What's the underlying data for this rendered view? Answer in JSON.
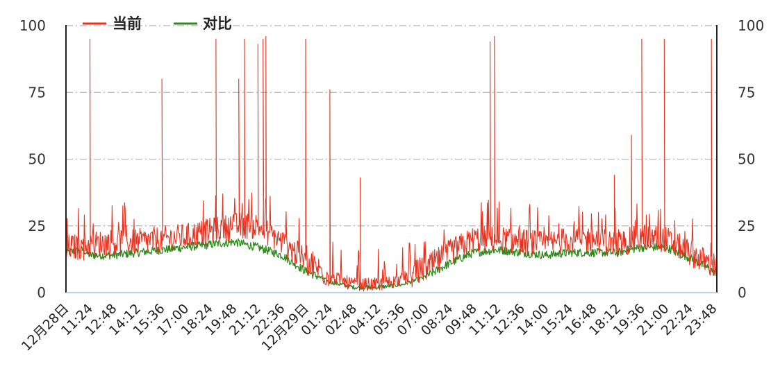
{
  "chart_data": {
    "type": "line",
    "title": "",
    "xlabel": "",
    "ylabel": "",
    "ylim": [
      0,
      100
    ],
    "xlim": [
      "12月28日 10:00",
      "12月29日 23:59"
    ],
    "grid": "horizontal dash-dot",
    "legend_position": "top-left",
    "y_ticks_left": [
      "0",
      "25",
      "50",
      "75",
      "100"
    ],
    "y_ticks_right": [
      "0",
      "25",
      "50",
      "75",
      "100"
    ],
    "x_ticks": [
      "12月28日",
      "11:24",
      "12:48",
      "14:12",
      "15:36",
      "17:00",
      "18:24",
      "19:48",
      "21:12",
      "22:36",
      "12月29日",
      "01:24",
      "02:48",
      "04:12",
      "05:36",
      "07:00",
      "08:24",
      "09:48",
      "11:12",
      "12:36",
      "14:00",
      "15:24",
      "16:48",
      "18:12",
      "19:36",
      "21:00",
      "22:24",
      "23:48"
    ],
    "series": [
      {
        "name": "当前",
        "color": "#e8321e",
        "x": [
          "12月28日 10:00",
          "12月28日 11:00",
          "12月28日 11:24",
          "12月28日 12:48",
          "12月28日 14:12",
          "12月28日 15:36",
          "12月28日 17:00",
          "12月28日 18:24",
          "12月28日 19:48",
          "12月28日 21:12",
          "12月28日 22:36",
          "12月29日 00:00",
          "12月29日 01:24",
          "12月29日 02:48",
          "12月29日 04:12",
          "12月29日 05:36",
          "12月29日 07:00",
          "12月29日 08:24",
          "12月29日 09:48",
          "12月29日 11:12",
          "12月29日 12:36",
          "12月29日 14:00",
          "12月29日 15:24",
          "12月29日 16:48",
          "12月29日 18:12",
          "12月29日 19:36",
          "12月29日 21:00",
          "12月29日 22:24",
          "12月29日 23:48"
        ],
        "values": [
          17,
          17,
          18,
          19,
          19,
          20,
          21,
          23,
          25,
          25,
          19,
          12,
          6,
          3,
          3,
          5,
          9,
          15,
          20,
          20,
          19,
          18,
          20,
          20,
          18,
          21,
          20,
          15,
          10
        ],
        "peaks": [
          {
            "x": "12月28日 11:24",
            "y": 95
          },
          {
            "x": "12月28日 15:36",
            "y": 80
          },
          {
            "x": "12月28日 18:45",
            "y": 95
          },
          {
            "x": "12月28日 20:05",
            "y": 80
          },
          {
            "x": "12月28日 20:25",
            "y": 95
          },
          {
            "x": "12月28日 21:12",
            "y": 93
          },
          {
            "x": "12月28日 21:30",
            "y": 95
          },
          {
            "x": "12月28日 21:40",
            "y": 96
          },
          {
            "x": "12月28日 23:59",
            "y": 95
          },
          {
            "x": "12月29日 01:24",
            "y": 76
          },
          {
            "x": "12月29日 03:10",
            "y": 43
          },
          {
            "x": "12月29日 10:45",
            "y": 94
          },
          {
            "x": "12月29日 11:00",
            "y": 96
          },
          {
            "x": "12月29日 18:00",
            "y": 44
          },
          {
            "x": "12月29日 19:00",
            "y": 59
          },
          {
            "x": "12月29日 19:36",
            "y": 95
          },
          {
            "x": "12月29日 20:55",
            "y": 95
          },
          {
            "x": "12月29日 23:40",
            "y": 95
          }
        ]
      },
      {
        "name": "对比",
        "color": "#2f8a1e",
        "x": [
          "12月28日 10:00",
          "12月28日 11:00",
          "12月28日 11:24",
          "12月28日 12:48",
          "12月28日 14:12",
          "12月28日 15:36",
          "12月28日 17:00",
          "12月28日 18:24",
          "12月28日 19:48",
          "12月28日 21:12",
          "12月28日 22:36",
          "12月29日 00:00",
          "12月29日 01:24",
          "12月29日 02:48",
          "12月29日 04:12",
          "12月29日 05:36",
          "12月29日 07:00",
          "12月29日 08:24",
          "12月29日 09:48",
          "12月29日 11:12",
          "12月29日 12:36",
          "12月29日 14:00",
          "12月29日 15:24",
          "12月29日 16:48",
          "12月29日 18:12",
          "12月29日 19:36",
          "12月29日 21:00",
          "12月29日 22:24",
          "12月29日 23:48"
        ],
        "values": [
          15,
          16,
          14,
          14,
          15,
          16,
          17,
          18,
          19,
          17,
          14,
          8,
          4,
          2,
          2,
          3,
          6,
          11,
          15,
          16,
          15,
          14,
          15,
          15,
          15,
          17,
          17,
          13,
          8
        ]
      }
    ]
  }
}
